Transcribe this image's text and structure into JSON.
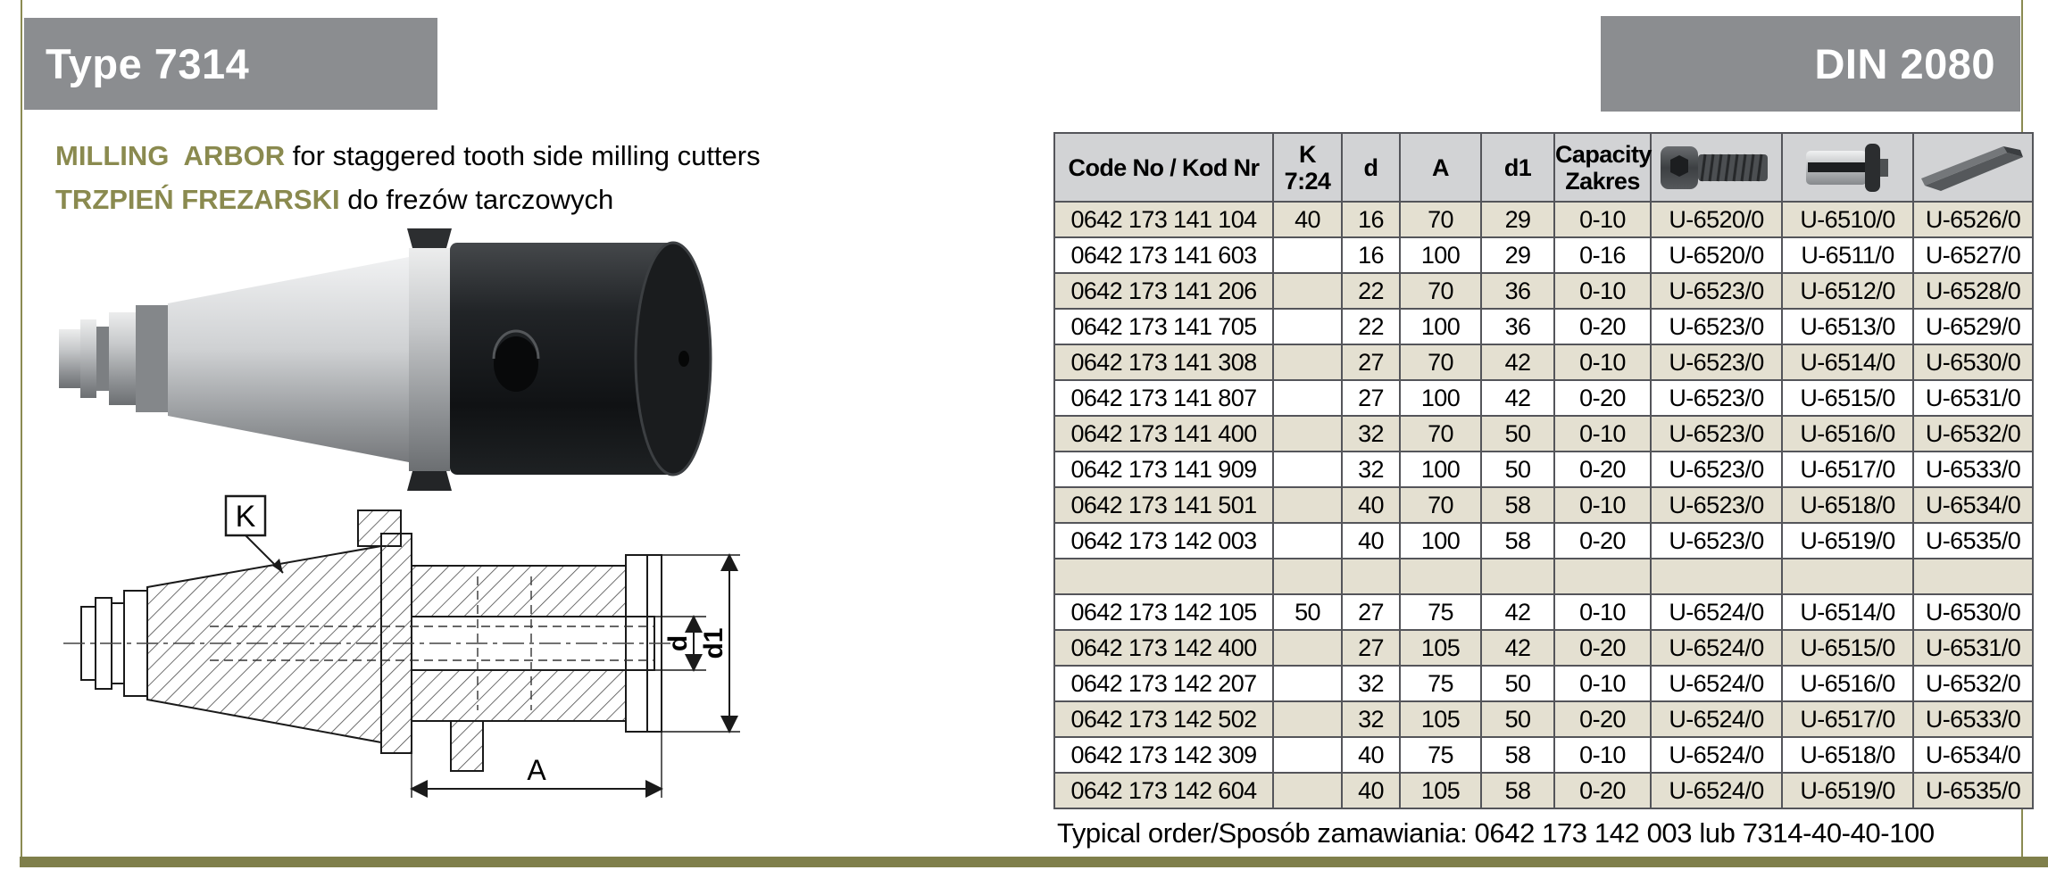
{
  "header": {
    "type_label": "Type 7314",
    "din_label": "DIN 2080"
  },
  "description": {
    "en_bold": "MILLING  ARBOR",
    "en_rest": " for staggered tooth side milling cutters",
    "pl_bold": "TRZPIEŃ FREZARSKI",
    "pl_rest": " do frezów tarczowych"
  },
  "drawing": {
    "labels": {
      "k": "K",
      "d": "d",
      "d1": "d1",
      "a": "A"
    }
  },
  "table": {
    "headers": {
      "code": "Code No / Kod Nr",
      "k_line1": "K",
      "k_line2": "7:24",
      "d": "d",
      "a": "A",
      "d1": "d1",
      "capacity_line1": "Capacity",
      "capacity_line2": "Zakres"
    },
    "icon_columns": [
      "clamping-screw",
      "spacer-ring",
      "drive-key"
    ],
    "rows": [
      {
        "shaded": true,
        "separator": false,
        "cells": [
          "0642 173 141 104",
          "40",
          "16",
          "70",
          "29",
          "0-10",
          "U-6520/0",
          "U-6510/0",
          "U-6526/0"
        ]
      },
      {
        "shaded": false,
        "separator": false,
        "cells": [
          "0642 173 141 603",
          "",
          "16",
          "100",
          "29",
          "0-16",
          "U-6520/0",
          "U-6511/0",
          "U-6527/0"
        ]
      },
      {
        "shaded": true,
        "separator": false,
        "cells": [
          "0642 173 141 206",
          "",
          "22",
          "70",
          "36",
          "0-10",
          "U-6523/0",
          "U-6512/0",
          "U-6528/0"
        ]
      },
      {
        "shaded": false,
        "separator": false,
        "cells": [
          "0642 173 141 705",
          "",
          "22",
          "100",
          "36",
          "0-20",
          "U-6523/0",
          "U-6513/0",
          "U-6529/0"
        ]
      },
      {
        "shaded": true,
        "separator": false,
        "cells": [
          "0642 173 141 308",
          "",
          "27",
          "70",
          "42",
          "0-10",
          "U-6523/0",
          "U-6514/0",
          "U-6530/0"
        ]
      },
      {
        "shaded": false,
        "separator": false,
        "cells": [
          "0642 173 141 807",
          "",
          "27",
          "100",
          "42",
          "0-20",
          "U-6523/0",
          "U-6515/0",
          "U-6531/0"
        ]
      },
      {
        "shaded": true,
        "separator": false,
        "cells": [
          "0642 173 141 400",
          "",
          "32",
          "70",
          "50",
          "0-10",
          "U-6523/0",
          "U-6516/0",
          "U-6532/0"
        ]
      },
      {
        "shaded": false,
        "separator": false,
        "cells": [
          "0642 173 141 909",
          "",
          "32",
          "100",
          "50",
          "0-20",
          "U-6523/0",
          "U-6517/0",
          "U-6533/0"
        ]
      },
      {
        "shaded": true,
        "separator": false,
        "cells": [
          "0642 173 141 501",
          "",
          "40",
          "70",
          "58",
          "0-10",
          "U-6523/0",
          "U-6518/0",
          "U-6534/0"
        ]
      },
      {
        "shaded": false,
        "separator": false,
        "cells": [
          "0642 173 142 003",
          "",
          "40",
          "100",
          "58",
          "0-20",
          "U-6523/0",
          "U-6519/0",
          "U-6535/0"
        ]
      },
      {
        "shaded": true,
        "separator": true,
        "cells": [
          "",
          "",
          "",
          "",
          "",
          "",
          "",
          "",
          ""
        ]
      },
      {
        "shaded": false,
        "separator": false,
        "cells": [
          "0642 173 142 105",
          "50",
          "27",
          "75",
          "42",
          "0-10",
          "U-6524/0",
          "U-6514/0",
          "U-6530/0"
        ]
      },
      {
        "shaded": true,
        "separator": false,
        "cells": [
          "0642 173 142 400",
          "",
          "27",
          "105",
          "42",
          "0-20",
          "U-6524/0",
          "U-6515/0",
          "U-6531/0"
        ]
      },
      {
        "shaded": false,
        "separator": false,
        "cells": [
          "0642 173 142 207",
          "",
          "32",
          "75",
          "50",
          "0-10",
          "U-6524/0",
          "U-6516/0",
          "U-6532/0"
        ]
      },
      {
        "shaded": true,
        "separator": false,
        "cells": [
          "0642 173 142 502",
          "",
          "32",
          "105",
          "50",
          "0-20",
          "U-6524/0",
          "U-6517/0",
          "U-6533/0"
        ]
      },
      {
        "shaded": false,
        "separator": false,
        "cells": [
          "0642 173 142 309",
          "",
          "40",
          "75",
          "58",
          "0-10",
          "U-6524/0",
          "U-6518/0",
          "U-6534/0"
        ]
      },
      {
        "shaded": true,
        "separator": false,
        "cells": [
          "0642 173 142 604",
          "",
          "40",
          "105",
          "58",
          "0-20",
          "U-6524/0",
          "U-6519/0",
          "U-6535/0"
        ]
      }
    ]
  },
  "footer": {
    "text": "Typical order/Sposób zamawiania: 0642 173 142 003 lub 7314-40-40-100"
  },
  "colors": {
    "accent_olive": "#8b8b52",
    "accent_olive_text": "#8a8a4f",
    "bar_olive": "#7f7f4b",
    "title_gray": "#8b8d90",
    "header_gray": "#d2d3d5",
    "row_beige": "#e4e0d1",
    "border": "#54555a"
  }
}
